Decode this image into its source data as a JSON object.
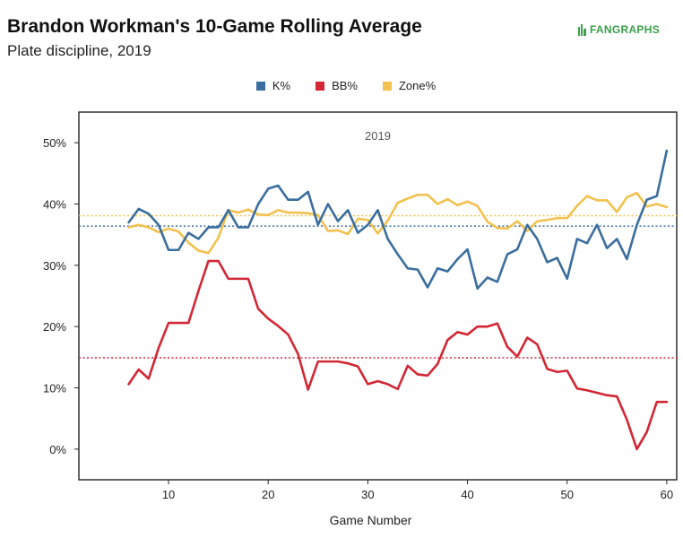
{
  "header": {
    "title": "Brandon Workman's 10-Game Rolling Average",
    "subtitle": "Plate discipline, 2019",
    "logo_text": "FANGRAPHS"
  },
  "colors": {
    "k": "#3a6e9e",
    "bb": "#d22734",
    "zone": "#f2c14e",
    "logo": "#3aa04b"
  },
  "chart_data": {
    "type": "line",
    "inner_label": "2019",
    "xlabel": "Game Number",
    "ylabel": "",
    "xlim": [
      1,
      61
    ],
    "ylim": [
      -5,
      55
    ],
    "xticks": [
      10,
      20,
      30,
      40,
      50,
      60
    ],
    "yticks": [
      0,
      10,
      20,
      30,
      40,
      50
    ],
    "ytick_labels": [
      "0%",
      "10%",
      "20%",
      "30%",
      "40%",
      "50%"
    ],
    "grid": false,
    "legend_position": "top-center",
    "reference_lines": [
      {
        "series": "K%",
        "value": 36.4
      },
      {
        "series": "BB%",
        "value": 14.9
      },
      {
        "series": "Zone%",
        "value": 38.1
      }
    ],
    "x": [
      6,
      7,
      8,
      9,
      10,
      11,
      12,
      13,
      14,
      15,
      16,
      17,
      18,
      19,
      20,
      21,
      22,
      23,
      24,
      25,
      26,
      27,
      28,
      29,
      30,
      31,
      32,
      33,
      34,
      35,
      36,
      37,
      38,
      39,
      40,
      41,
      42,
      43,
      44,
      45,
      46,
      47,
      48,
      49,
      50,
      51,
      52,
      53,
      54,
      55,
      56,
      57,
      58,
      59,
      60
    ],
    "series": [
      {
        "name": "K%",
        "values": [
          37,
          39.2,
          38.4,
          36.6,
          32.5,
          32.5,
          35.3,
          34.3,
          36.2,
          36.2,
          39,
          36.2,
          36.2,
          40,
          42.5,
          43,
          40.7,
          40.7,
          42,
          36.6,
          40,
          37.2,
          39,
          35.3,
          36.6,
          39,
          34.3,
          31.8,
          29.5,
          29.3,
          26.4,
          29.5,
          29,
          31,
          32.6,
          26.2,
          28,
          27.3,
          31.8,
          32.6,
          36.6,
          34.3,
          30.5,
          31.2,
          27.8,
          34.3,
          33.6,
          36.6,
          32.8,
          34.3,
          31,
          36.6,
          40.7,
          41.3,
          48.7
        ]
      },
      {
        "name": "BB%",
        "values": [
          10.6,
          13,
          11.5,
          16.5,
          20.6,
          20.6,
          20.6,
          25.8,
          30.7,
          30.7,
          27.8,
          27.8,
          27.8,
          22.9,
          21.3,
          20.1,
          18.7,
          15.5,
          9.7,
          14.3,
          14.3,
          14.3,
          14,
          13.5,
          10.6,
          11.1,
          10.6,
          9.8,
          13.6,
          12.2,
          12,
          13.9,
          17.8,
          19.1,
          18.7,
          20,
          20,
          20.5,
          16.7,
          15.1,
          18.2,
          17.1,
          13.1,
          12.6,
          12.8,
          9.9,
          9.6,
          9.2,
          8.8,
          8.6,
          4.8,
          0,
          2.8,
          7.7,
          7.7
        ]
      },
      {
        "name": "Zone%",
        "values": [
          36.2,
          36.6,
          36.2,
          35.4,
          36,
          35.5,
          33.7,
          32.4,
          32,
          34.5,
          39,
          38.6,
          39.1,
          38.3,
          38.2,
          39,
          38.6,
          38.6,
          38.5,
          38.2,
          35.6,
          35.7,
          35.1,
          37.6,
          37.4,
          35.2,
          37.3,
          40.2,
          40.9,
          41.5,
          41.5,
          40,
          40.8,
          39.8,
          40.4,
          39.7,
          37.1,
          36.1,
          36,
          37.2,
          35.6,
          37.2,
          37.4,
          37.7,
          37.7,
          39.7,
          41.3,
          40.6,
          40.6,
          38.7,
          41.1,
          41.8,
          39.6,
          40,
          39.5
        ]
      }
    ]
  }
}
